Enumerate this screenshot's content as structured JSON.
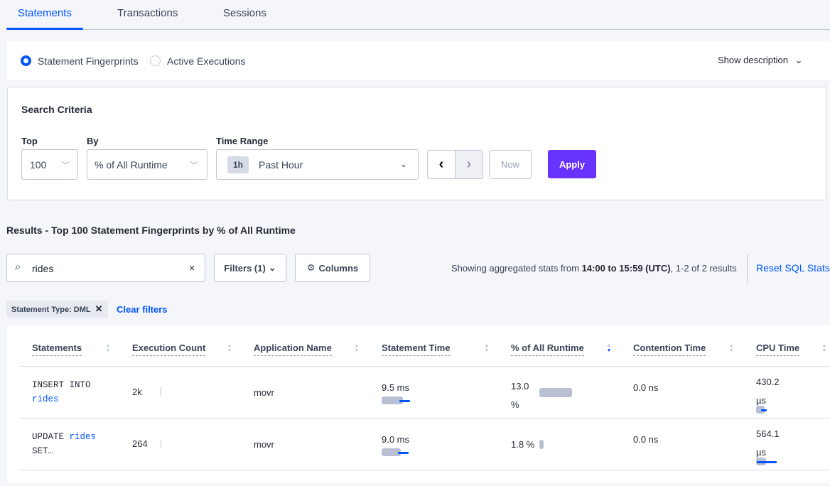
{
  "tabs": [
    {
      "label": "Statements",
      "active": true
    },
    {
      "label": "Transactions"
    },
    {
      "label": "Sessions"
    }
  ],
  "view_toggle": {
    "options": [
      "Statement Fingerprints",
      "Active Executions"
    ],
    "selected": "Statement Fingerprints",
    "show_description": "Show description"
  },
  "search_criteria": {
    "title": "Search Criteria",
    "top": {
      "label": "Top",
      "value": "100"
    },
    "by": {
      "label": "By",
      "value": "% of All Runtime"
    },
    "time_range": {
      "label": "Time Range",
      "badge": "1h",
      "value": "Past Hour"
    },
    "now_label": "Now",
    "apply_label": "Apply"
  },
  "results_title": "Results - Top 100 Statement Fingerprints by % of All Runtime",
  "search": {
    "value": "rides",
    "clear": "×"
  },
  "filters_label": "Filters (1)",
  "columns_label": "Columns",
  "stats": {
    "prefix": "Showing aggregated stats from ",
    "range": "14:00 to 15:59 (UTC)",
    "suffix": ", 1-2 of 2 results"
  },
  "reset_label": "Reset SQL Stats",
  "chip": {
    "label": "Statement Type: DML"
  },
  "clear_filters": "Clear filters",
  "colors": {
    "accent": "#0055ff",
    "apply": "#6933ff"
  },
  "table": {
    "columns": [
      "Statements",
      "Execution Count",
      "Application Name",
      "Statement Time",
      "% of All Runtime",
      "Contention Time",
      "CPU Time"
    ],
    "sorted_column": "% of All Runtime",
    "rows": [
      {
        "stmt_a": "INSERT INTO",
        "stmt_b": "rides",
        "stmt_c": "",
        "exec": "2k",
        "app": "movr",
        "time": "9.5 ms",
        "runtime_a": "13.0",
        "runtime_b": "%",
        "contention": "0.0 ns",
        "cpu_a": "430.2",
        "cpu_b": "µs"
      },
      {
        "stmt_a": "UPDATE",
        "stmt_b": "rides",
        "stmt_c": "SET…",
        "exec": "264",
        "app": "movr",
        "time": "9.0 ms",
        "runtime_a": "1.8 %",
        "runtime_b": "",
        "contention": "0.0 ns",
        "cpu_a": "564.1",
        "cpu_b": "µs"
      }
    ]
  }
}
